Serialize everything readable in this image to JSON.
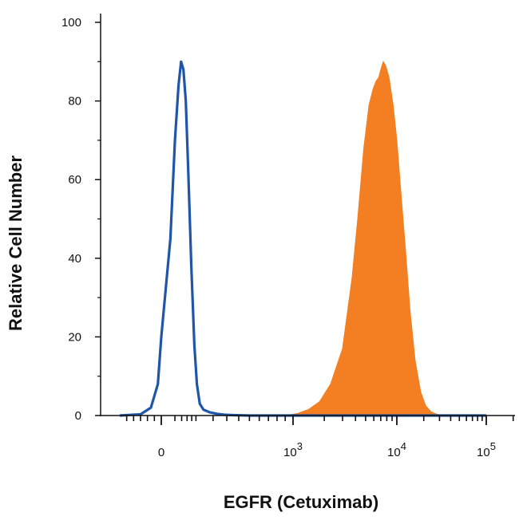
{
  "chart_data": {
    "type": "area",
    "xlabel": "EGFR (Cetuximab)",
    "ylabel": "Relative Cell Number",
    "x_scale": "biexponential",
    "ylim": [
      0,
      100
    ],
    "y_ticks": [
      0,
      20,
      40,
      60,
      80,
      100
    ],
    "x_ticks": [
      {
        "value": 0,
        "base": "0",
        "exp": ""
      },
      {
        "value": 1000,
        "base": "10",
        "exp": "3"
      },
      {
        "value": 10000,
        "base": "10",
        "exp": "4"
      },
      {
        "value": 100000,
        "base": "10",
        "exp": "5"
      }
    ],
    "grid": false,
    "legend": "none",
    "series": [
      {
        "style": "outline",
        "color": "#1f56a8",
        "points": [
          [
            -120,
            0
          ],
          [
            -60,
            0.3
          ],
          [
            -30,
            2
          ],
          [
            -10,
            8
          ],
          [
            0,
            20
          ],
          [
            10,
            45
          ],
          [
            20,
            70
          ],
          [
            30,
            84
          ],
          [
            38,
            90
          ],
          [
            46,
            88
          ],
          [
            55,
            80
          ],
          [
            65,
            62
          ],
          [
            78,
            38
          ],
          [
            92,
            18
          ],
          [
            105,
            8
          ],
          [
            120,
            3
          ],
          [
            140,
            1.5
          ],
          [
            180,
            0.8
          ],
          [
            230,
            0.4
          ],
          [
            280,
            0.2
          ],
          [
            350,
            0.1
          ],
          [
            500,
            0
          ],
          [
            100000,
            0
          ]
        ]
      },
      {
        "style": "filled",
        "color": "#f37f22",
        "points": [
          [
            -120,
            0
          ],
          [
            900,
            0
          ],
          [
            1100,
            0.5
          ],
          [
            1400,
            1.5
          ],
          [
            1800,
            3.5
          ],
          [
            2300,
            8
          ],
          [
            3000,
            17
          ],
          [
            3700,
            35
          ],
          [
            4200,
            50
          ],
          [
            4800,
            68
          ],
          [
            5400,
            79
          ],
          [
            5900,
            83
          ],
          [
            6300,
            85
          ],
          [
            6700,
            86
          ],
          [
            7000,
            88
          ],
          [
            7400,
            90
          ],
          [
            7800,
            89
          ],
          [
            8400,
            86
          ],
          [
            9200,
            79
          ],
          [
            10000,
            70
          ],
          [
            11000,
            58
          ],
          [
            12500,
            42
          ],
          [
            14000,
            27
          ],
          [
            16000,
            14
          ],
          [
            18500,
            6
          ],
          [
            21000,
            2.5
          ],
          [
            24000,
            1
          ],
          [
            28000,
            0.3
          ],
          [
            32000,
            0
          ],
          [
            100000,
            0
          ]
        ]
      }
    ]
  }
}
